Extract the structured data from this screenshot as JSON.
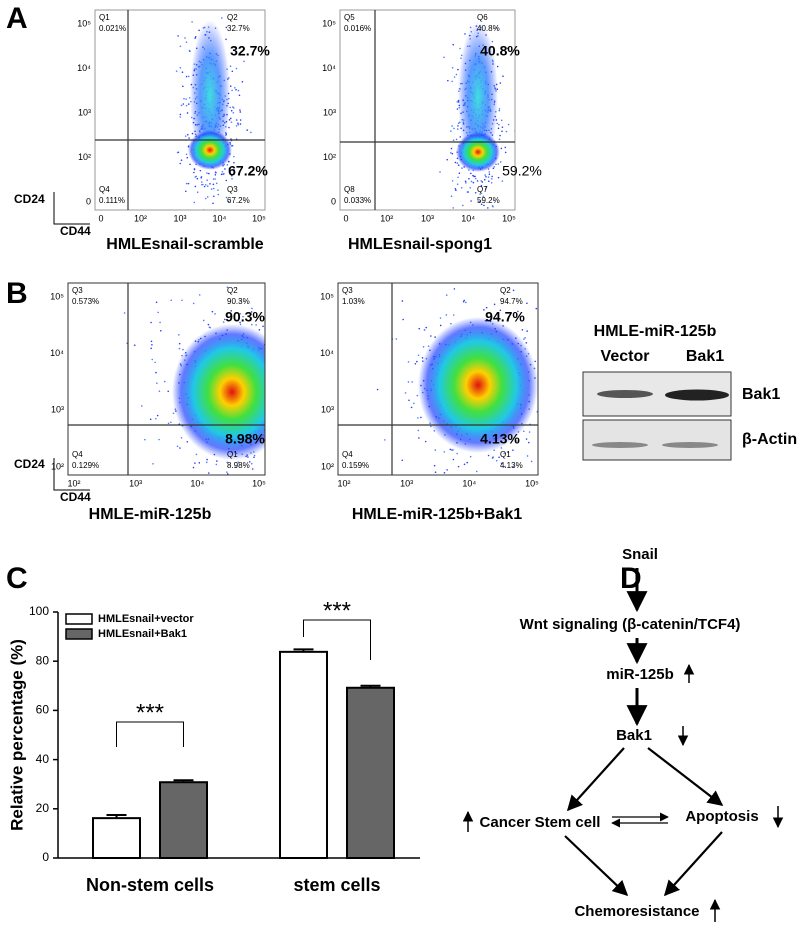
{
  "panel_labels": [
    "A",
    "B",
    "C",
    "D"
  ],
  "flow_plots": [
    {
      "caption": "HMLEsnail-scramble",
      "y_axis_label": "CD24",
      "x_axis_label": "CD44",
      "quadrants": [
        {
          "name": "Q1",
          "percent": "0.021%"
        },
        {
          "name": "Q2",
          "percent": "32.7%"
        },
        {
          "name": "Q4",
          "percent": "0.111%"
        },
        {
          "name": "Q3",
          "percent": "67.2%"
        }
      ],
      "highlights": [
        "32.7%",
        "67.2%"
      ],
      "yticks": [
        "10⁵",
        "10⁴",
        "10³",
        "10²",
        "0"
      ],
      "xticks": [
        "0",
        "10²",
        "10³",
        "10⁴",
        "10⁵"
      ]
    },
    {
      "caption": "HMLEsnail-spong1",
      "quadrants": [
        {
          "name": "Q5",
          "percent": "0.016%"
        },
        {
          "name": "Q6",
          "percent": "40.8%"
        },
        {
          "name": "Q8",
          "percent": "0.033%"
        },
        {
          "name": "Q7",
          "percent": "59.2%"
        }
      ],
      "highlights": [
        "40.8%",
        "59.2%"
      ],
      "yticks": [
        "10⁵",
        "10⁴",
        "10³",
        "10²",
        "0"
      ],
      "xticks": [
        "0",
        "10²",
        "10³",
        "10⁴",
        "10⁵"
      ]
    },
    {
      "caption": "HMLE-miR-125b",
      "y_axis_label": "CD24",
      "x_axis_label": "CD44",
      "quadrants": [
        {
          "name": "Q3",
          "percent": "0.573%"
        },
        {
          "name": "Q2",
          "percent": "90.3%"
        },
        {
          "name": "Q4",
          "percent": "0.129%"
        },
        {
          "name": "Q1",
          "percent": "8.98%"
        }
      ],
      "highlights": [
        "90.3%",
        "8.98%"
      ],
      "yticks": [
        "10⁵",
        "10⁴",
        "10³",
        "10²"
      ],
      "xticks": [
        "10²",
        "10³",
        "10⁴",
        "10⁵"
      ]
    },
    {
      "caption": "HMLE-miR-125b+Bak1",
      "quadrants": [
        {
          "name": "Q3",
          "percent": "1.03%"
        },
        {
          "name": "Q2",
          "percent": "94.7%"
        },
        {
          "name": "Q4",
          "percent": "0.159%"
        },
        {
          "name": "Q1",
          "percent": "4.13%"
        }
      ],
      "highlights": [
        "94.7%",
        "4.13%"
      ],
      "yticks": [
        "10⁵",
        "10⁴",
        "10³",
        "10²"
      ],
      "xticks": [
        "10²",
        "10³",
        "10⁴",
        "10⁵"
      ]
    }
  ],
  "western_blot": {
    "title": "HMLE-miR-125b",
    "lanes": [
      "Vector",
      "Bak1"
    ],
    "bands": [
      "Bak1",
      "β-Actin"
    ]
  },
  "chart_data": {
    "type": "bar",
    "y_label": "Relative percentage (%)",
    "categories": [
      "Non-stem cells",
      "stem cells"
    ],
    "series": [
      {
        "name": "HMLEsnail+vector",
        "color": "#ffffff",
        "values": [
          16.2,
          83.8
        ],
        "errors": [
          1.3,
          1.0
        ]
      },
      {
        "name": "HMLEsnail+Bak1",
        "color": "#666666",
        "values": [
          30.8,
          69.2
        ],
        "errors": [
          0.8,
          0.8
        ]
      }
    ],
    "ylim": [
      0,
      100
    ],
    "yticks": [
      0,
      20,
      40,
      60,
      80,
      100
    ],
    "annotations": [
      "***",
      "***"
    ],
    "legend": "upper left"
  },
  "diagram": {
    "nodes": [
      "Snail",
      "Wnt signaling (β-catenin/TCF4)",
      "miR-125b",
      "Bak1",
      "Cancer Stem cell",
      "Apoptosis",
      "Chemoresistance"
    ]
  }
}
